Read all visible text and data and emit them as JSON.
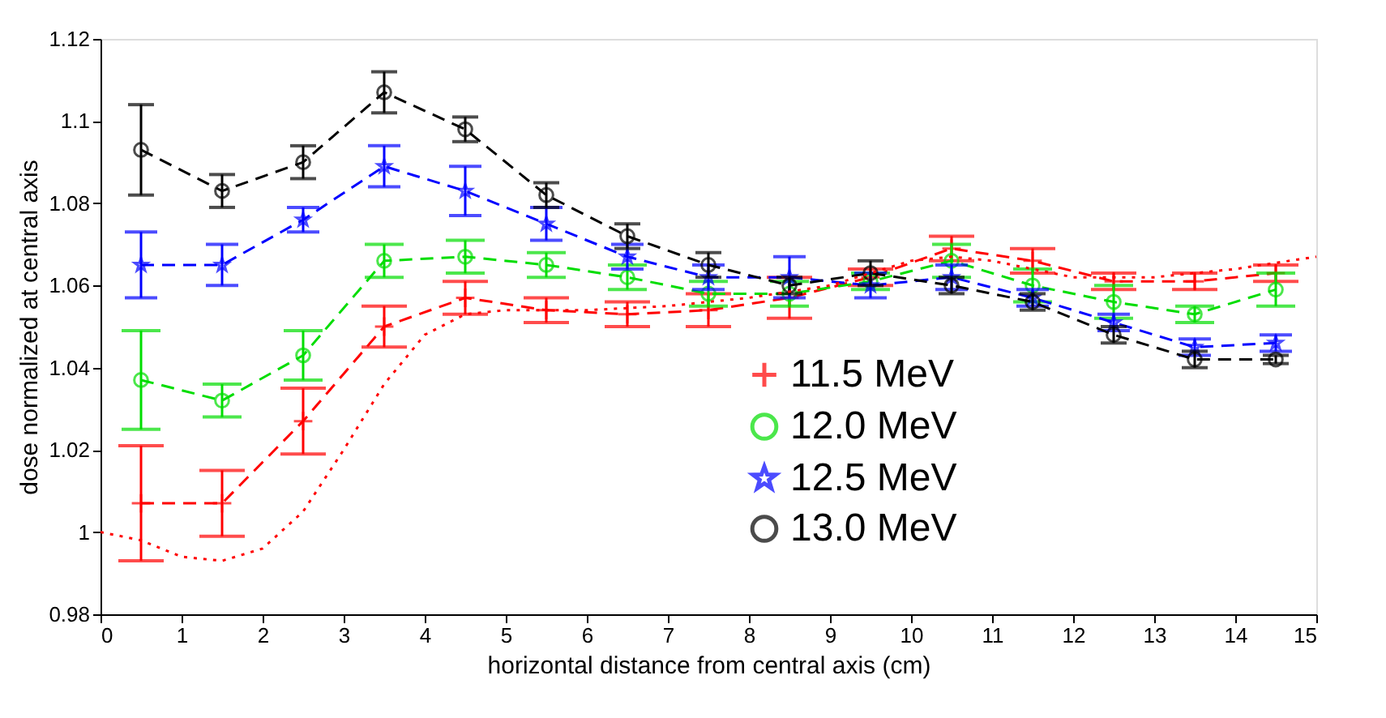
{
  "chart_data": {
    "type": "line",
    "xlabel": "horizontal distance from central axis (cm)",
    "ylabel": "dose normalized at central axis",
    "xlim": [
      0,
      15
    ],
    "xticks": [
      0,
      1,
      2,
      3,
      4,
      5,
      6,
      7,
      8,
      9,
      10,
      11,
      12,
      13,
      14,
      15
    ],
    "ylim": [
      0.98,
      1.12
    ],
    "yticks": [
      0.98,
      1,
      1.02,
      1.04,
      1.06,
      1.08,
      1.1,
      1.12
    ],
    "grid": false,
    "legend": "bottom right",
    "x": [
      0.5,
      1.5,
      2.5,
      3.5,
      4.5,
      5.5,
      6.5,
      7.5,
      8.5,
      9.5,
      10.5,
      11.5,
      12.5,
      13.5,
      14.5
    ],
    "series": [
      {
        "name": "11.5 MeV",
        "color": "#ff0000",
        "marker": "cross",
        "line_style": "dashed",
        "values": [
          1.007,
          1.007,
          1.027,
          1.05,
          1.057,
          1.054,
          1.053,
          1.054,
          1.057,
          1.062,
          1.069,
          1.066,
          1.061,
          1.061,
          1.063
        ],
        "errors": [
          0.014,
          0.008,
          0.008,
          0.005,
          0.004,
          0.003,
          0.003,
          0.004,
          0.005,
          0.002,
          0.003,
          0.003,
          0.002,
          0.002,
          0.002
        ]
      },
      {
        "name": "12.0 MeV",
        "color": "#00dd00",
        "marker": "circle",
        "line_style": "dashed",
        "values": [
          1.037,
          1.032,
          1.043,
          1.066,
          1.067,
          1.065,
          1.062,
          1.058,
          1.058,
          1.061,
          1.066,
          1.06,
          1.056,
          1.053,
          1.059
        ],
        "errors": [
          0.012,
          0.004,
          0.006,
          0.004,
          0.004,
          0.003,
          0.003,
          0.003,
          0.003,
          0.002,
          0.004,
          0.004,
          0.004,
          0.002,
          0.004
        ]
      },
      {
        "name": "12.5 MeV",
        "color": "#0000ff",
        "marker": "star",
        "line_style": "dashed",
        "values": [
          1.065,
          1.065,
          1.076,
          1.089,
          1.083,
          1.075,
          1.067,
          1.062,
          1.062,
          1.06,
          1.062,
          1.057,
          1.051,
          1.045,
          1.046
        ],
        "errors": [
          0.008,
          0.005,
          0.003,
          0.005,
          0.006,
          0.004,
          0.003,
          0.003,
          0.005,
          0.003,
          0.003,
          0.002,
          0.002,
          0.002,
          0.002
        ]
      },
      {
        "name": "13.0 MeV",
        "color": "#000000",
        "marker": "circle",
        "line_style": "dashed",
        "values": [
          1.093,
          1.083,
          1.09,
          1.107,
          1.098,
          1.082,
          1.072,
          1.065,
          1.06,
          1.063,
          1.06,
          1.056,
          1.048,
          1.042,
          1.042
        ],
        "errors": [
          0.011,
          0.004,
          0.004,
          0.005,
          0.003,
          0.003,
          0.003,
          0.003,
          0.002,
          0.003,
          0.002,
          0.002,
          0.002,
          0.002,
          0.001
        ]
      },
      {
        "color": "#ff0000",
        "marker": "none",
        "line_style": "dotted",
        "x": [
          0,
          0.5,
          1,
          1.5,
          2,
          2.5,
          3,
          3.5,
          4,
          4.5,
          5,
          6,
          7,
          8,
          9,
          10,
          10.5,
          11,
          12,
          13,
          14,
          15
        ],
        "values": [
          1.0,
          0.998,
          0.994,
          0.993,
          0.996,
          1.005,
          1.02,
          1.036,
          1.048,
          1.053,
          1.054,
          1.054,
          1.055,
          1.057,
          1.06,
          1.066,
          1.067,
          1.066,
          1.062,
          1.062,
          1.064,
          1.067
        ]
      }
    ]
  }
}
